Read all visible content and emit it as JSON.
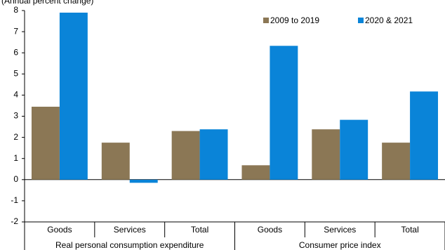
{
  "chart_data": {
    "type": "bar",
    "title": "(Annual percent change)",
    "categories": [
      "Goods",
      "Services",
      "Total",
      "Goods",
      "Services",
      "Total"
    ],
    "category_groups": [
      "Real personal consumption expenditure",
      "Consumer price index"
    ],
    "series": [
      {
        "name": "2009 to 2019",
        "color": "#8b7755",
        "values": [
          3.45,
          1.75,
          2.3,
          0.68,
          2.38,
          1.75
        ]
      },
      {
        "name": "2020 & 2021",
        "color": "#0a84d8",
        "values": [
          7.9,
          -0.15,
          2.38,
          6.33,
          2.83,
          4.17
        ]
      }
    ],
    "ylim": [
      -2,
      8
    ],
    "yticks": [
      -2,
      -1,
      0,
      1,
      2,
      3,
      4,
      5,
      6,
      7,
      8
    ],
    "grid": false
  }
}
